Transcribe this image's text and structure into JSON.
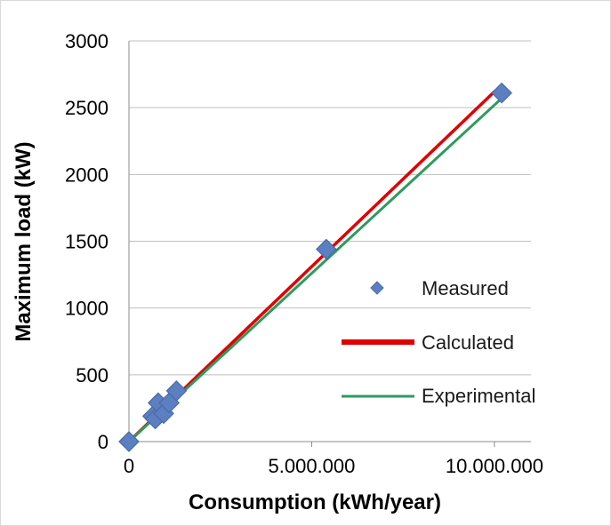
{
  "chart_data": {
    "type": "scatter",
    "title": "",
    "xlabel": "Consumption (kWh/year)",
    "ylabel": "Maximum load (kW)",
    "xlim": [
      0,
      11000000
    ],
    "ylim": [
      0,
      3000
    ],
    "x_ticks": [
      0,
      5000000,
      10000000
    ],
    "x_tick_labels": [
      "0",
      "5.000.000",
      "10.000.000"
    ],
    "y_ticks": [
      0,
      500,
      1000,
      1500,
      2000,
      2500,
      3000
    ],
    "y_tick_labels": [
      "0",
      "500",
      "1000",
      "1500",
      "2000",
      "2500",
      "3000"
    ],
    "grid": "horizontal",
    "legend_position": "right",
    "series": [
      {
        "name": "Measured",
        "kind": "points",
        "color": "#5b7fc0",
        "x": [
          0,
          650000,
          720000,
          800000,
          950000,
          1100000,
          1300000,
          5400000,
          10200000
        ],
        "y": [
          0,
          190,
          170,
          290,
          210,
          290,
          380,
          1440,
          2610
        ]
      },
      {
        "name": "Calculated",
        "kind": "line",
        "color": "#e00000",
        "x": [
          0,
          10000000
        ],
        "y": [
          0,
          2620
        ]
      },
      {
        "name": "Experimental",
        "kind": "line",
        "color": "#2e9b5e",
        "x": [
          0,
          10200000
        ],
        "y": [
          0,
          2570
        ]
      }
    ]
  }
}
